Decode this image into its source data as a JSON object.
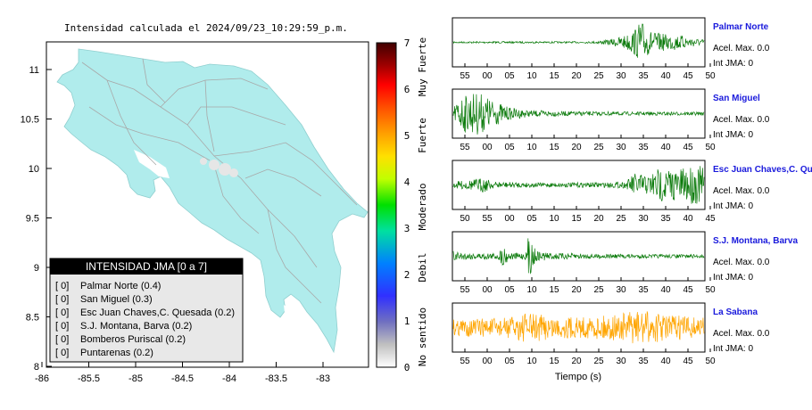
{
  "map": {
    "title": "Intensidad calculada el 2024/09/23_10:29:59_p.m.",
    "x_ticks": [
      "-86",
      "-85.5",
      "-85",
      "-84.5",
      "-84",
      "-83.5",
      "-83"
    ],
    "y_ticks": [
      "11",
      "10.5",
      "10",
      "9.5",
      "9",
      "8.5",
      "8"
    ],
    "colors": {
      "land": "#b0ecec",
      "roads": "#a8a8a8",
      "sea": "#ffffff"
    }
  },
  "legend": {
    "title": "INTENSIDAD JMA [0 a 7]",
    "items": [
      {
        "level": "[ 0]",
        "text": "Palmar Norte (0.4)"
      },
      {
        "level": "[ 0]",
        "text": "San Miguel (0.3)"
      },
      {
        "level": "[ 0]",
        "text": "Esc Juan Chaves,C. Quesada (0.2)"
      },
      {
        "level": "[ 0]",
        "text": "S.J. Montana, Barva (0.2)"
      },
      {
        "level": "[ 0]",
        "text": "Bomberos Puriscal (0.2)"
      },
      {
        "level": "[ 0]",
        "text": "Puntarenas (0.2)"
      }
    ]
  },
  "colorbar": {
    "ticks": [
      "7",
      "6",
      "5",
      "4",
      "3",
      "2",
      "1",
      "0"
    ],
    "categories": [
      "Muy Fuerte",
      "Fuerte",
      "Moderado",
      "Debil",
      "No sentido"
    ]
  },
  "chart_data": {
    "type": "line",
    "xlabel": "Tiempo (s)",
    "series": [
      {
        "name": "Palmar Norte",
        "accel": "Acel. Max. 0.0",
        "jma": "Int JMA: 0",
        "color": "#0a7a0a",
        "ticks": [
          "55",
          "00",
          "05",
          "10",
          "15",
          "20",
          "25",
          "30",
          "35",
          "40",
          "45",
          "50"
        ],
        "envelope": [
          [
            0,
            0.04
          ],
          [
            0.55,
            0.04
          ],
          [
            0.62,
            0.12
          ],
          [
            0.68,
            0.3
          ],
          [
            0.72,
            0.55
          ],
          [
            0.75,
            1.0
          ],
          [
            0.78,
            0.55
          ],
          [
            0.83,
            0.4
          ],
          [
            0.9,
            0.35
          ],
          [
            0.96,
            0.2
          ],
          [
            1,
            0.12
          ]
        ]
      },
      {
        "name": "San Miguel",
        "accel": "Acel. Max. 0.0",
        "jma": "Int JMA: 0",
        "color": "#0a7a0a",
        "ticks": [
          "55",
          "00",
          "05",
          "10",
          "15",
          "20",
          "25",
          "30",
          "35",
          "40",
          "45",
          "50"
        ],
        "envelope": [
          [
            0,
            0.35
          ],
          [
            0.04,
            0.85
          ],
          [
            0.1,
            1.0
          ],
          [
            0.16,
            0.6
          ],
          [
            0.22,
            0.3
          ],
          [
            0.3,
            0.15
          ],
          [
            0.5,
            0.1
          ],
          [
            0.75,
            0.08
          ],
          [
            1,
            0.08
          ]
        ]
      },
      {
        "name": "Esc Juan Chaves,C. Qu",
        "accel": "Acel. Max. 0.0",
        "jma": "Int JMA: 0",
        "color": "#0a7a0a",
        "ticks": [
          "50",
          "55",
          "00",
          "05",
          "10",
          "15",
          "20",
          "25",
          "30",
          "35",
          "40",
          "45"
        ],
        "envelope": [
          [
            0,
            0.15
          ],
          [
            0.08,
            0.25
          ],
          [
            0.12,
            0.35
          ],
          [
            0.16,
            0.15
          ],
          [
            0.35,
            0.1
          ],
          [
            0.6,
            0.12
          ],
          [
            0.69,
            0.15
          ],
          [
            0.72,
            0.55
          ],
          [
            0.78,
            0.45
          ],
          [
            0.82,
            0.8
          ],
          [
            0.9,
            0.7
          ],
          [
            0.95,
            0.9
          ],
          [
            1,
            0.85
          ]
        ]
      },
      {
        "name": "S.J. Montana, Barva",
        "accel": "Acel. Max. 0.0",
        "jma": "Int JMA: 0",
        "color": "#0a7a0a",
        "ticks": [
          "55",
          "00",
          "05",
          "10",
          "15",
          "20",
          "25",
          "30",
          "35",
          "40",
          "45",
          "50"
        ],
        "envelope": [
          [
            0,
            0.25
          ],
          [
            0.05,
            0.15
          ],
          [
            0.18,
            0.15
          ],
          [
            0.2,
            0.5
          ],
          [
            0.23,
            0.15
          ],
          [
            0.29,
            0.15
          ],
          [
            0.3,
            1.0
          ],
          [
            0.33,
            0.25
          ],
          [
            0.4,
            0.15
          ],
          [
            0.6,
            0.1
          ],
          [
            1,
            0.08
          ]
        ]
      },
      {
        "name": "La Sabana",
        "accel": "Acel. Max. 0.0",
        "jma": "Int JMA: 0",
        "color": "#ffa500",
        "ticks": [
          "55",
          "00",
          "05",
          "10",
          "15",
          "20",
          "25",
          "30",
          "35",
          "40",
          "45",
          "50"
        ],
        "envelope": [
          [
            0,
            0.4
          ],
          [
            0.2,
            0.45
          ],
          [
            0.3,
            0.7
          ],
          [
            0.4,
            0.5
          ],
          [
            0.55,
            0.5
          ],
          [
            0.65,
            0.6
          ],
          [
            0.75,
            0.8
          ],
          [
            0.85,
            0.6
          ],
          [
            1,
            0.5
          ]
        ]
      }
    ]
  }
}
